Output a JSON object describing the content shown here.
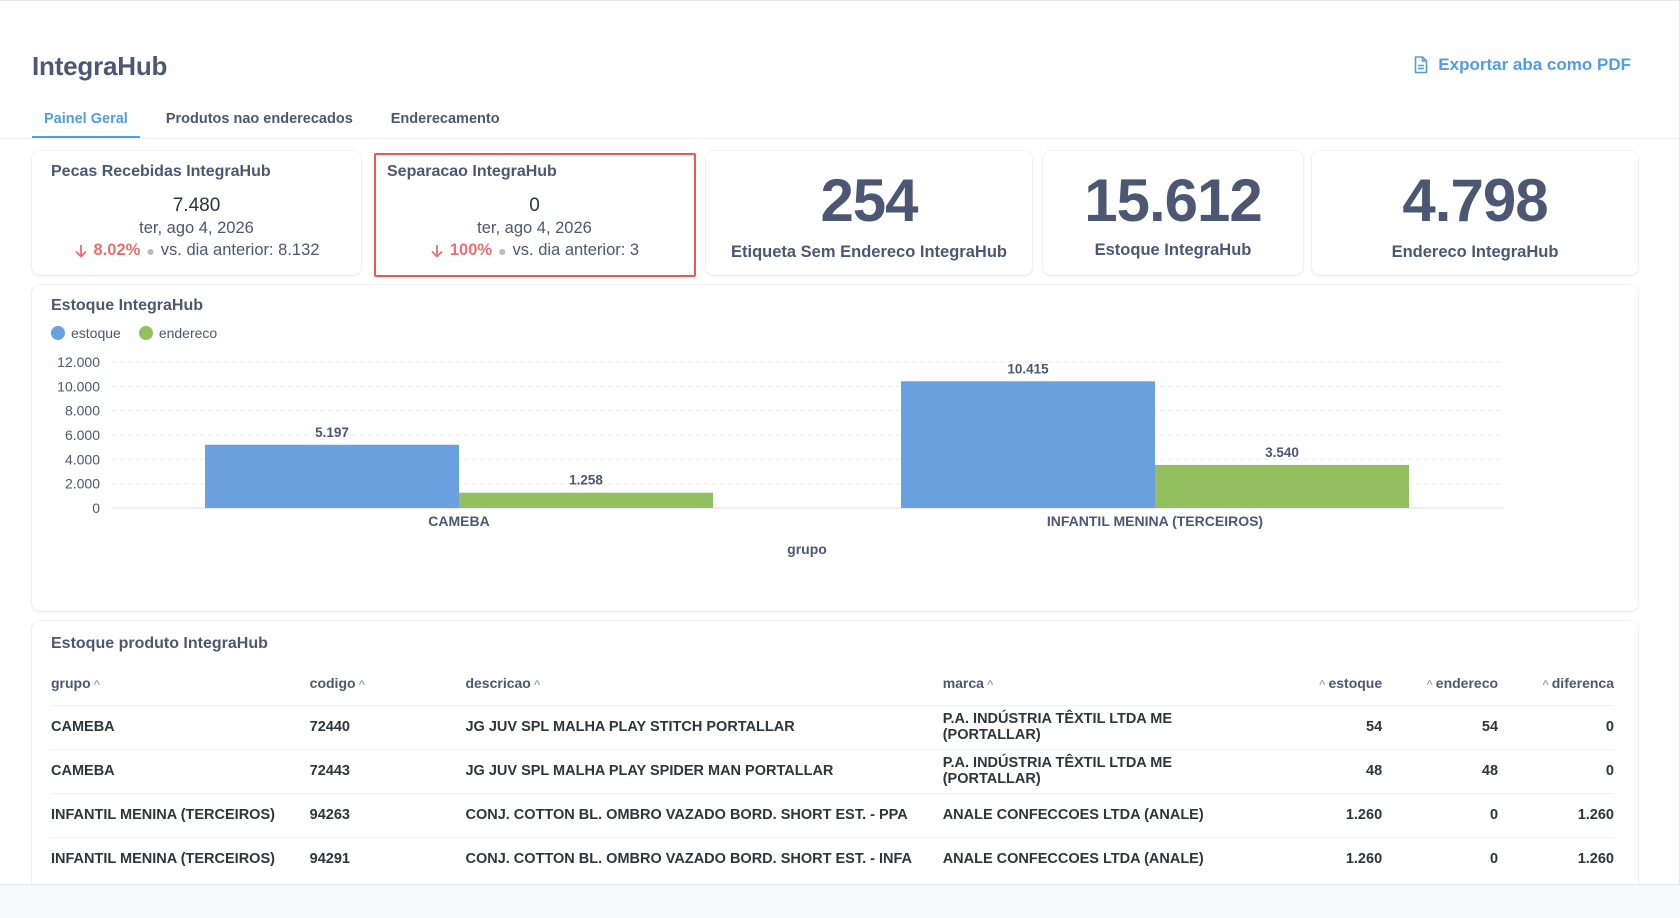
{
  "header": {
    "title": "IntegraHub",
    "export_label": "Exportar aba como PDF"
  },
  "tabs": [
    {
      "label": "Painel Geral",
      "active": true
    },
    {
      "label": "Produtos nao enderecados",
      "active": false
    },
    {
      "label": "Enderecamento",
      "active": false
    }
  ],
  "kpis": {
    "pecas": {
      "title": "Pecas Recebidas IntegraHub",
      "value": "7.480",
      "date": "ter, ago 4, 2026",
      "change": "8.02%",
      "compare": "vs. dia anterior: 8.132"
    },
    "separacao": {
      "title": "Separacao IntegraHub",
      "value": "0",
      "date": "ter, ago 4, 2026",
      "change": "100%",
      "compare": "vs. dia anterior: 3"
    },
    "etiqueta": {
      "value": "254",
      "label": "Etiqueta Sem Endereco IntegraHub"
    },
    "estoque": {
      "value": "15.612",
      "label": "Estoque IntegraHub"
    },
    "endereco": {
      "value": "4.798",
      "label": "Endereco IntegraHub"
    }
  },
  "colors": {
    "accent": "#509ee3",
    "estoque": "#6a9fe0",
    "endereco": "#93bf5e",
    "negative": "#ed6e6e",
    "highlight": "#e85a50"
  },
  "chart_data": {
    "type": "bar",
    "title": "Estoque IntegraHub",
    "xlabel": "grupo",
    "ylabel": "",
    "categories": [
      "CAMEBA",
      "INFANTIL MENINA (TERCEIROS)"
    ],
    "series": [
      {
        "name": "estoque",
        "values": [
          5197,
          10415
        ],
        "labels": [
          "5.197",
          "10.415"
        ]
      },
      {
        "name": "endereco",
        "values": [
          1258,
          3540
        ],
        "labels": [
          "1.258",
          "3.540"
        ]
      }
    ],
    "ylim": [
      0,
      12000
    ],
    "yticks": [
      0,
      2000,
      4000,
      6000,
      8000,
      10000,
      12000
    ],
    "ytick_labels": [
      "0",
      "2.000",
      "4.000",
      "6.000",
      "8.000",
      "10.000",
      "12.000"
    ],
    "grid": true,
    "legend": "top-left"
  },
  "table": {
    "title": "Estoque produto IntegraHub",
    "columns": [
      "grupo",
      "codigo",
      "descricao",
      "marca",
      "estoque",
      "endereco",
      "diferenca"
    ],
    "rows": [
      [
        "CAMEBA",
        "72440",
        "JG JUV SPL MALHA PLAY STITCH PORTALLAR",
        "P.A. INDÚSTRIA TÊXTIL LTDA ME (PORTALLAR)",
        "54",
        "54",
        "0"
      ],
      [
        "CAMEBA",
        "72443",
        "JG JUV SPL MALHA PLAY SPIDER MAN PORTALLAR",
        "P.A. INDÚSTRIA TÊXTIL LTDA ME (PORTALLAR)",
        "48",
        "48",
        "0"
      ],
      [
        "INFANTIL MENINA (TERCEIROS)",
        "94263",
        "CONJ. COTTON BL. OMBRO VAZADO BORD. SHORT EST. - PPA",
        "ANALE CONFECCOES LTDA (ANALE)",
        "1.260",
        "0",
        "1.260"
      ],
      [
        "INFANTIL MENINA (TERCEIROS)",
        "94291",
        "CONJ. COTTON BL. OMBRO VAZADO BORD. SHORT EST. - INFA",
        "ANALE CONFECCOES LTDA (ANALE)",
        "1.260",
        "0",
        "1.260"
      ]
    ]
  }
}
